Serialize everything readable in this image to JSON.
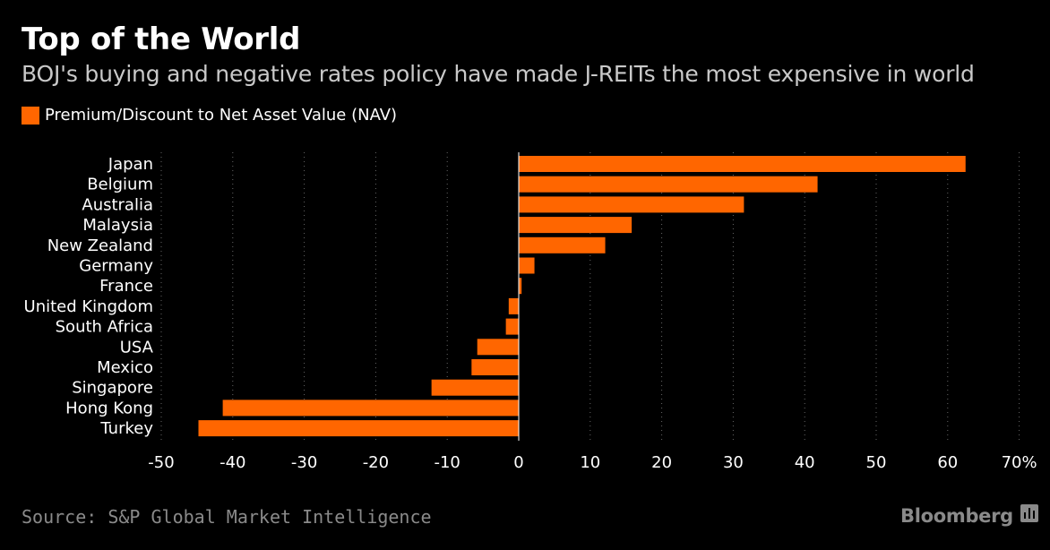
{
  "title": "Top of the World",
  "subtitle": "BOJ's buying and negative rates policy have made J-REITs the most expensive in world",
  "legend": {
    "label": "Premium/Discount to Net Asset Value (NAV)"
  },
  "footer": {
    "source": "Source: S&P Global Market Intelligence",
    "brand": "Bloomberg"
  },
  "colors": {
    "bar": "#ff6600",
    "background": "#000000",
    "grid": "#666666",
    "text": "#ffffff",
    "muted": "#8a8a8a"
  },
  "chart_data": {
    "type": "bar",
    "orientation": "horizontal",
    "title": "Top of the World",
    "categories": [
      "Japan",
      "Belgium",
      "Australia",
      "Malaysia",
      "New Zealand",
      "Germany",
      "France",
      "United Kingdom",
      "South Africa",
      "USA",
      "Mexico",
      "Singapore",
      "Hong Kong",
      "Turkey"
    ],
    "series": [
      {
        "name": "Premium/Discount to Net Asset Value (NAV)",
        "values": [
          62.5,
          41.8,
          31.5,
          15.8,
          12.1,
          2.2,
          0.4,
          -1.4,
          -1.8,
          -5.8,
          -6.6,
          -12.2,
          -41.4,
          -44.8
        ]
      }
    ],
    "xlim": [
      -50,
      70
    ],
    "xticks": [
      -50,
      -40,
      -30,
      -20,
      -10,
      0,
      10,
      20,
      30,
      40,
      50,
      60,
      70
    ],
    "xtick_labels": [
      "-50",
      "-40",
      "-30",
      "-20",
      "-10",
      "0",
      "10",
      "20",
      "30",
      "40",
      "50",
      "60",
      "70%"
    ],
    "grid": true,
    "legend_position": "top-left"
  }
}
